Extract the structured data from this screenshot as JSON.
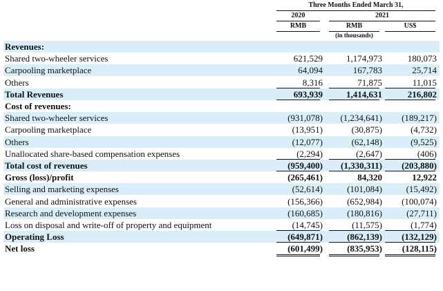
{
  "header": {
    "period": "Three Months Ended March 31,",
    "year_2020": "2020",
    "year_2021": "2021",
    "currency_2020": "RMB",
    "currency_2021_rmb": "RMB",
    "currency_2021_usd": "US$",
    "units": "(in thousands)"
  },
  "rows": [
    {
      "label": "Revenues:",
      "bold": true,
      "shaded": true,
      "v1": "",
      "v2": "",
      "v3": ""
    },
    {
      "label": "Shared two-wheeler services",
      "bold": false,
      "shaded": false,
      "v1": "621,529",
      "v2": "1,174,973",
      "v3": "180,073"
    },
    {
      "label": "Carpooling marketplace",
      "bold": false,
      "shaded": true,
      "v1": "64,094",
      "v2": "167,783",
      "v3": "25,714"
    },
    {
      "label": "Others",
      "bold": false,
      "shaded": false,
      "v1": "8,316",
      "v2": "71,875",
      "v3": "11,015"
    },
    {
      "label": "Total Revenues",
      "bold": true,
      "shaded": true,
      "v1": "693,939",
      "v2": "1,414,631",
      "v3": "216,802"
    },
    {
      "label": "Cost of revenues:",
      "bold": true,
      "shaded": false,
      "v1": "",
      "v2": "",
      "v3": ""
    },
    {
      "label": "Shared two-wheeler services",
      "bold": false,
      "shaded": true,
      "v1": "(931,078)",
      "v2": "(1,234,641)",
      "v3": "(189,217)"
    },
    {
      "label": "Carpooling marketplace",
      "bold": false,
      "shaded": false,
      "v1": "(13,951)",
      "v2": "(30,875)",
      "v3": "(4,732)"
    },
    {
      "label": "Others",
      "bold": false,
      "shaded": true,
      "v1": "(12,077)",
      "v2": "(62,148)",
      "v3": "(9,525)"
    },
    {
      "label": "Unallocated share-based compensation expenses",
      "bold": false,
      "shaded": false,
      "v1": "(2,294)",
      "v2": "(2,647)",
      "v3": "(406)"
    },
    {
      "label": "Total cost of revenues",
      "bold": true,
      "shaded": true,
      "v1": "(959,400)",
      "v2": "(1,330,311)",
      "v3": "(203,880)"
    },
    {
      "label": "Gross (loss)/profit",
      "bold": true,
      "shaded": false,
      "v1": "(265,461)",
      "v2": "84,320",
      "v3": "12,922"
    },
    {
      "label": "Selling and marketing expenses",
      "bold": false,
      "shaded": true,
      "v1": "(52,614)",
      "v2": "(101,084)",
      "v3": "(15,492)"
    },
    {
      "label": "General and administrative expenses",
      "bold": false,
      "shaded": false,
      "v1": "(156,366)",
      "v2": "(652,984)",
      "v3": "(100,074)"
    },
    {
      "label": "Research and development expenses",
      "bold": false,
      "shaded": true,
      "v1": "(160,685)",
      "v2": "(180,816)",
      "v3": "(27,711)"
    },
    {
      "label": "Loss on disposal and write-off of property and equipment",
      "bold": false,
      "shaded": false,
      "v1": "(14,745)",
      "v2": "(11,575)",
      "v3": "(1,774)"
    },
    {
      "label": "Operating Loss",
      "bold": true,
      "shaded": true,
      "v1": "(649,871)",
      "v2": "(862,139)",
      "v3": "(132,129)"
    },
    {
      "label": "Net loss",
      "bold": true,
      "shaded": false,
      "v1": "(601,499)",
      "v2": "(835,953)",
      "v3": "(128,115)"
    }
  ]
}
